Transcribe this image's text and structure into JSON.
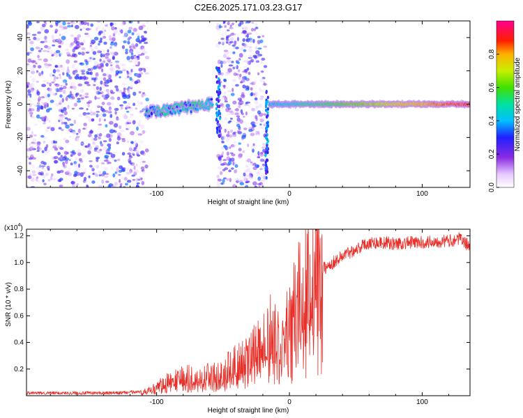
{
  "title": "C2E6.2025.171.03.23.G17",
  "chart_data": [
    {
      "type": "heatmap",
      "xlabel": "Height of straight line (km)",
      "ylabel": "Frequency (Hz)",
      "xlim": [
        -198,
        136
      ],
      "ylim": [
        -50,
        50
      ],
      "xticks": [
        -100,
        0,
        100
      ],
      "yticks": [
        -40,
        -20,
        0,
        20,
        40
      ],
      "colorbar": {
        "label": "Normalized spectral amplitude",
        "range": [
          0,
          1
        ],
        "ticks": [
          "0.0",
          "0.2",
          "0.4",
          "0.6",
          "0.8"
        ]
      },
      "regions": [
        {
          "x": [
            -198,
            -107
          ],
          "y": [
            -50,
            50
          ],
          "kind": "noise"
        },
        {
          "x": [
            -108,
            -58
          ],
          "kind": "signal",
          "freq_start": -5,
          "freq_end": 0
        },
        {
          "x": [
            -55,
            -52
          ],
          "y": [
            -20,
            22
          ],
          "kind": "spike"
        },
        {
          "x": [
            -54,
            -18
          ],
          "y": [
            -50,
            50
          ],
          "kind": "noise"
        },
        {
          "x": [
            -18,
            -16
          ],
          "y": [
            -45,
            8
          ],
          "kind": "spike"
        },
        {
          "x": [
            -15,
            136
          ],
          "kind": "signal",
          "freq_start": 0,
          "freq_end": 0
        }
      ]
    },
    {
      "type": "line",
      "xlabel": "Height of straight line (km)",
      "ylabel": "SNR (10 * v/v)",
      "y_multiplier": "(x10^4)",
      "xlim": [
        -198,
        136
      ],
      "ylim": [
        0,
        1.25
      ],
      "xticks": [
        -100,
        0,
        100
      ],
      "yticks": [
        "0.2",
        "0.4",
        "0.6",
        "0.8",
        "1.0",
        "1.2"
      ],
      "series": [
        {
          "color": "#e8302a",
          "x": [
            -198,
            -160,
            -130,
            -112,
            -100,
            -90,
            -80,
            -70,
            -60,
            -50,
            -40,
            -30,
            -22,
            -15,
            -10,
            -5,
            0,
            5,
            10,
            15,
            20,
            25,
            30,
            40,
            50,
            60,
            70,
            80,
            90,
            100,
            110,
            120,
            128,
            136
          ],
          "y": [
            0.02,
            0.02,
            0.02,
            0.03,
            0.08,
            0.13,
            0.15,
            0.15,
            0.17,
            0.2,
            0.25,
            0.3,
            0.42,
            0.5,
            0.48,
            0.45,
            0.55,
            0.7,
            0.82,
            0.9,
            0.92,
            0.95,
            0.98,
            1.05,
            1.1,
            1.15,
            1.15,
            1.14,
            1.15,
            1.15,
            1.16,
            1.16,
            1.18,
            1.12
          ]
        }
      ]
    }
  ]
}
